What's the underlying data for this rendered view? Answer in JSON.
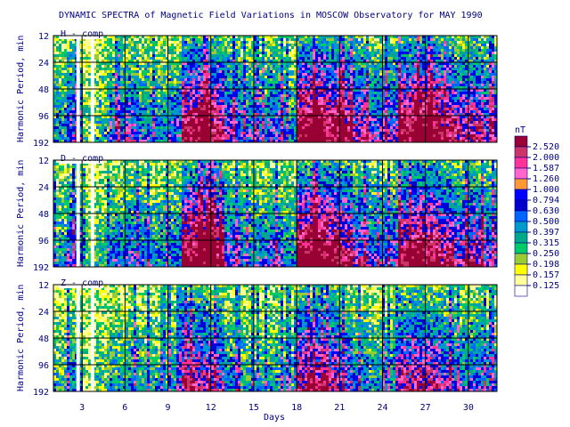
{
  "title": "DYNAMIC SPECTRA of Magnetic Field Variations in MOSCOW Observatory for MAY 1990",
  "colors": {
    "text": "#00007f",
    "axis": "#000000",
    "palette": [
      "#ffffff",
      "#ffff99",
      "#ffff00",
      "#99cc33",
      "#00cc66",
      "#00aa88",
      "#0099cc",
      "#0066ff",
      "#0000cc",
      "#0000ff",
      "#ff9933",
      "#ff66cc",
      "#ff3399",
      "#cc3366",
      "#990033"
    ]
  },
  "chart_data": [
    {
      "type": "heatmap",
      "panel_label": "H - comp",
      "ylabel": "Harmonic Period, min",
      "yticks": [
        "12",
        "24",
        "48",
        "96",
        "192"
      ],
      "xticks": [
        "3",
        "6",
        "9",
        "12",
        "15",
        "18",
        "21",
        "24",
        "27",
        "30"
      ],
      "xlabel": "",
      "xlim": [
        1,
        32
      ],
      "ylim": [
        12,
        192
      ],
      "yscale": "log2",
      "grid": true,
      "gaps_days": [
        2.6,
        3.6
      ],
      "activity_by_day": [
        0.35,
        0.55,
        0.2,
        0.3,
        0.5,
        0.55,
        0.45,
        0.4,
        0.5,
        0.9,
        0.95,
        0.85,
        0.6,
        0.5,
        0.45,
        0.55,
        0.4,
        0.95,
        1.0,
        0.9,
        0.85,
        0.7,
        0.55,
        0.6,
        0.9,
        1.0,
        0.95,
        0.85,
        0.7,
        0.75,
        0.6
      ]
    },
    {
      "type": "heatmap",
      "panel_label": "D - comp",
      "ylabel": "Harmonic Period, min",
      "yticks": [
        "12",
        "24",
        "48",
        "96",
        "192"
      ],
      "xticks": [
        "3",
        "6",
        "9",
        "12",
        "15",
        "18",
        "21",
        "24",
        "27",
        "30"
      ],
      "xlabel": "",
      "xlim": [
        1,
        32
      ],
      "ylim": [
        12,
        192
      ],
      "yscale": "log2",
      "grid": true,
      "gaps_days": [
        2.6,
        3.6
      ],
      "activity_by_day": [
        0.35,
        0.55,
        0.2,
        0.3,
        0.45,
        0.5,
        0.45,
        0.4,
        0.45,
        0.95,
        0.95,
        0.85,
        0.55,
        0.45,
        0.45,
        0.5,
        0.4,
        0.95,
        1.0,
        0.95,
        0.85,
        0.65,
        0.5,
        0.55,
        0.85,
        0.95,
        0.9,
        0.8,
        0.65,
        0.7,
        0.6
      ]
    },
    {
      "type": "heatmap",
      "panel_label": "Z - comp",
      "ylabel": "Harmonic Period, min",
      "yticks": [
        "12",
        "24",
        "48",
        "96",
        "192"
      ],
      "xticks": [
        "3",
        "6",
        "9",
        "12",
        "15",
        "18",
        "21",
        "24",
        "27",
        "30"
      ],
      "xlabel": "Days",
      "xlim": [
        1,
        32
      ],
      "ylim": [
        12,
        192
      ],
      "yscale": "log2",
      "grid": true,
      "gaps_days": [
        2.6,
        3.6
      ],
      "activity_by_day": [
        0.3,
        0.4,
        0.15,
        0.25,
        0.35,
        0.4,
        0.35,
        0.3,
        0.35,
        0.7,
        0.7,
        0.6,
        0.4,
        0.35,
        0.3,
        0.35,
        0.3,
        0.75,
        0.75,
        0.7,
        0.6,
        0.45,
        0.35,
        0.4,
        0.7,
        0.75,
        0.7,
        0.6,
        0.45,
        0.5,
        0.4
      ]
    }
  ],
  "colorbar": {
    "unit": "nT",
    "labels": [
      "2.520",
      "2.000",
      "1.587",
      "1.260",
      "1.000",
      "0.794",
      "0.630",
      "0.500",
      "0.397",
      "0.315",
      "0.250",
      "0.198",
      "0.157",
      "0.125"
    ],
    "colors": [
      "#990033",
      "#cc3366",
      "#ff3399",
      "#ff66cc",
      "#ff9933",
      "#0000ff",
      "#0000cc",
      "#0066ff",
      "#0099cc",
      "#00aa88",
      "#00cc66",
      "#99cc33",
      "#ffff00",
      "#ffff99",
      "#ffffff"
    ]
  }
}
